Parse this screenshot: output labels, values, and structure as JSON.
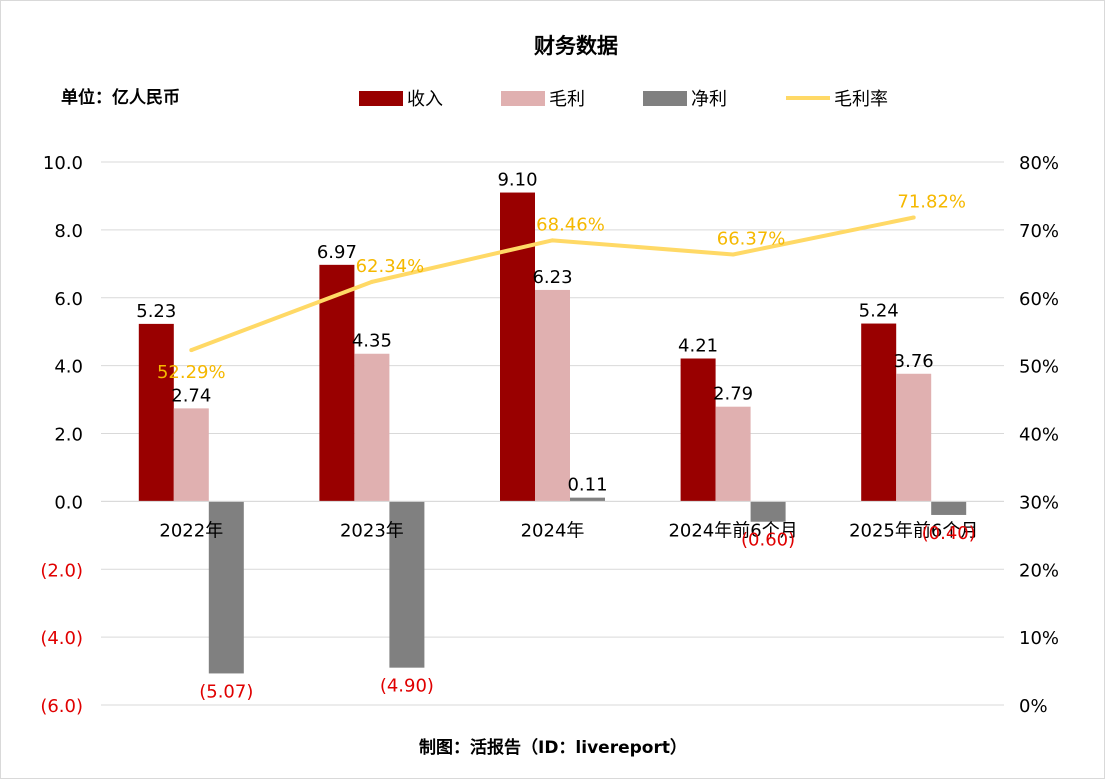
{
  "chart_data": {
    "type": "bar",
    "title": "财务数据",
    "unit_label": "单位：亿人民币",
    "source": "制图：活报告（ID：livereport）",
    "categories": [
      "2022年",
      "2023年",
      "2024年",
      "2024年前6个月",
      "2025年前6个月"
    ],
    "series": [
      {
        "name": "收入",
        "type": "bar",
        "color": "#990000",
        "values": [
          5.23,
          6.97,
          9.1,
          4.21,
          5.24
        ],
        "labels": [
          "5.23",
          "6.97",
          "9.10",
          "4.21",
          "5.24"
        ]
      },
      {
        "name": "毛利",
        "type": "bar",
        "color": "#e0b0b0",
        "values": [
          2.74,
          4.35,
          6.23,
          2.79,
          3.76
        ],
        "labels": [
          "2.74",
          "4.35",
          "6.23",
          "2.79",
          "3.76"
        ]
      },
      {
        "name": "净利",
        "type": "bar",
        "color": "#808080",
        "values": [
          -5.07,
          -4.9,
          0.11,
          -0.6,
          -0.4
        ],
        "labels": [
          "(5.07)",
          "(4.90)",
          "0.11",
          "(0.60)",
          "(0.40)"
        ]
      },
      {
        "name": "毛利率",
        "type": "line",
        "color": "#ffd966",
        "axis": "right",
        "values": [
          52.29,
          62.34,
          68.46,
          66.37,
          71.82
        ],
        "labels": [
          "52.29%",
          "62.34%",
          "68.46%",
          "66.37%",
          "71.82%"
        ]
      }
    ],
    "y_left": {
      "ylim": [
        -6,
        10
      ],
      "ticks": [
        10,
        8,
        6,
        4,
        2,
        0,
        -2,
        -4,
        -6
      ],
      "tick_labels": [
        "10.0",
        "8.0",
        "6.0",
        "4.0",
        "2.0",
        "0.0",
        "(2.0)",
        "(4.0)",
        "(6.0)"
      ]
    },
    "y_right": {
      "ylim": [
        0,
        80
      ],
      "ticks": [
        80,
        70,
        60,
        50,
        40,
        30,
        20,
        10,
        0
      ],
      "tick_labels": [
        "80%",
        "70%",
        "60%",
        "50%",
        "40%",
        "30%",
        "20%",
        "10%",
        "0%"
      ]
    },
    "legend_position": "top",
    "grid": true
  }
}
